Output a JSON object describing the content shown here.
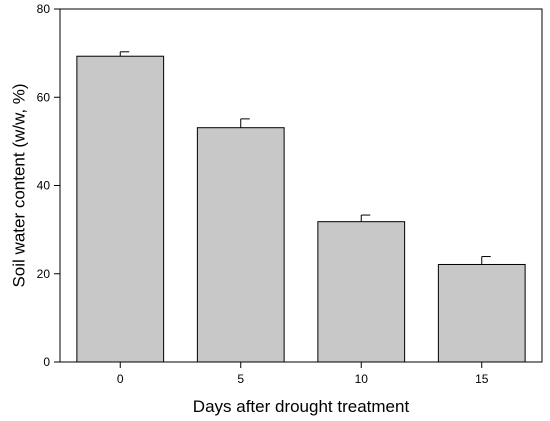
{
  "chart_data": {
    "type": "bar",
    "title": "",
    "xlabel": "Days after drought treatment",
    "ylabel": "Soil water content (w/w, %)",
    "categories": [
      "0",
      "5",
      "10",
      "15"
    ],
    "values": [
      69.3,
      53.1,
      31.8,
      22.1
    ],
    "errors": [
      1.0,
      2.0,
      1.5,
      1.8
    ],
    "ylim": [
      0,
      80
    ],
    "yticks": [
      0,
      20,
      40,
      60,
      80
    ],
    "bar_color": "#c8c8c8",
    "edge_color": "#000000",
    "grid": false,
    "legend": "none"
  }
}
